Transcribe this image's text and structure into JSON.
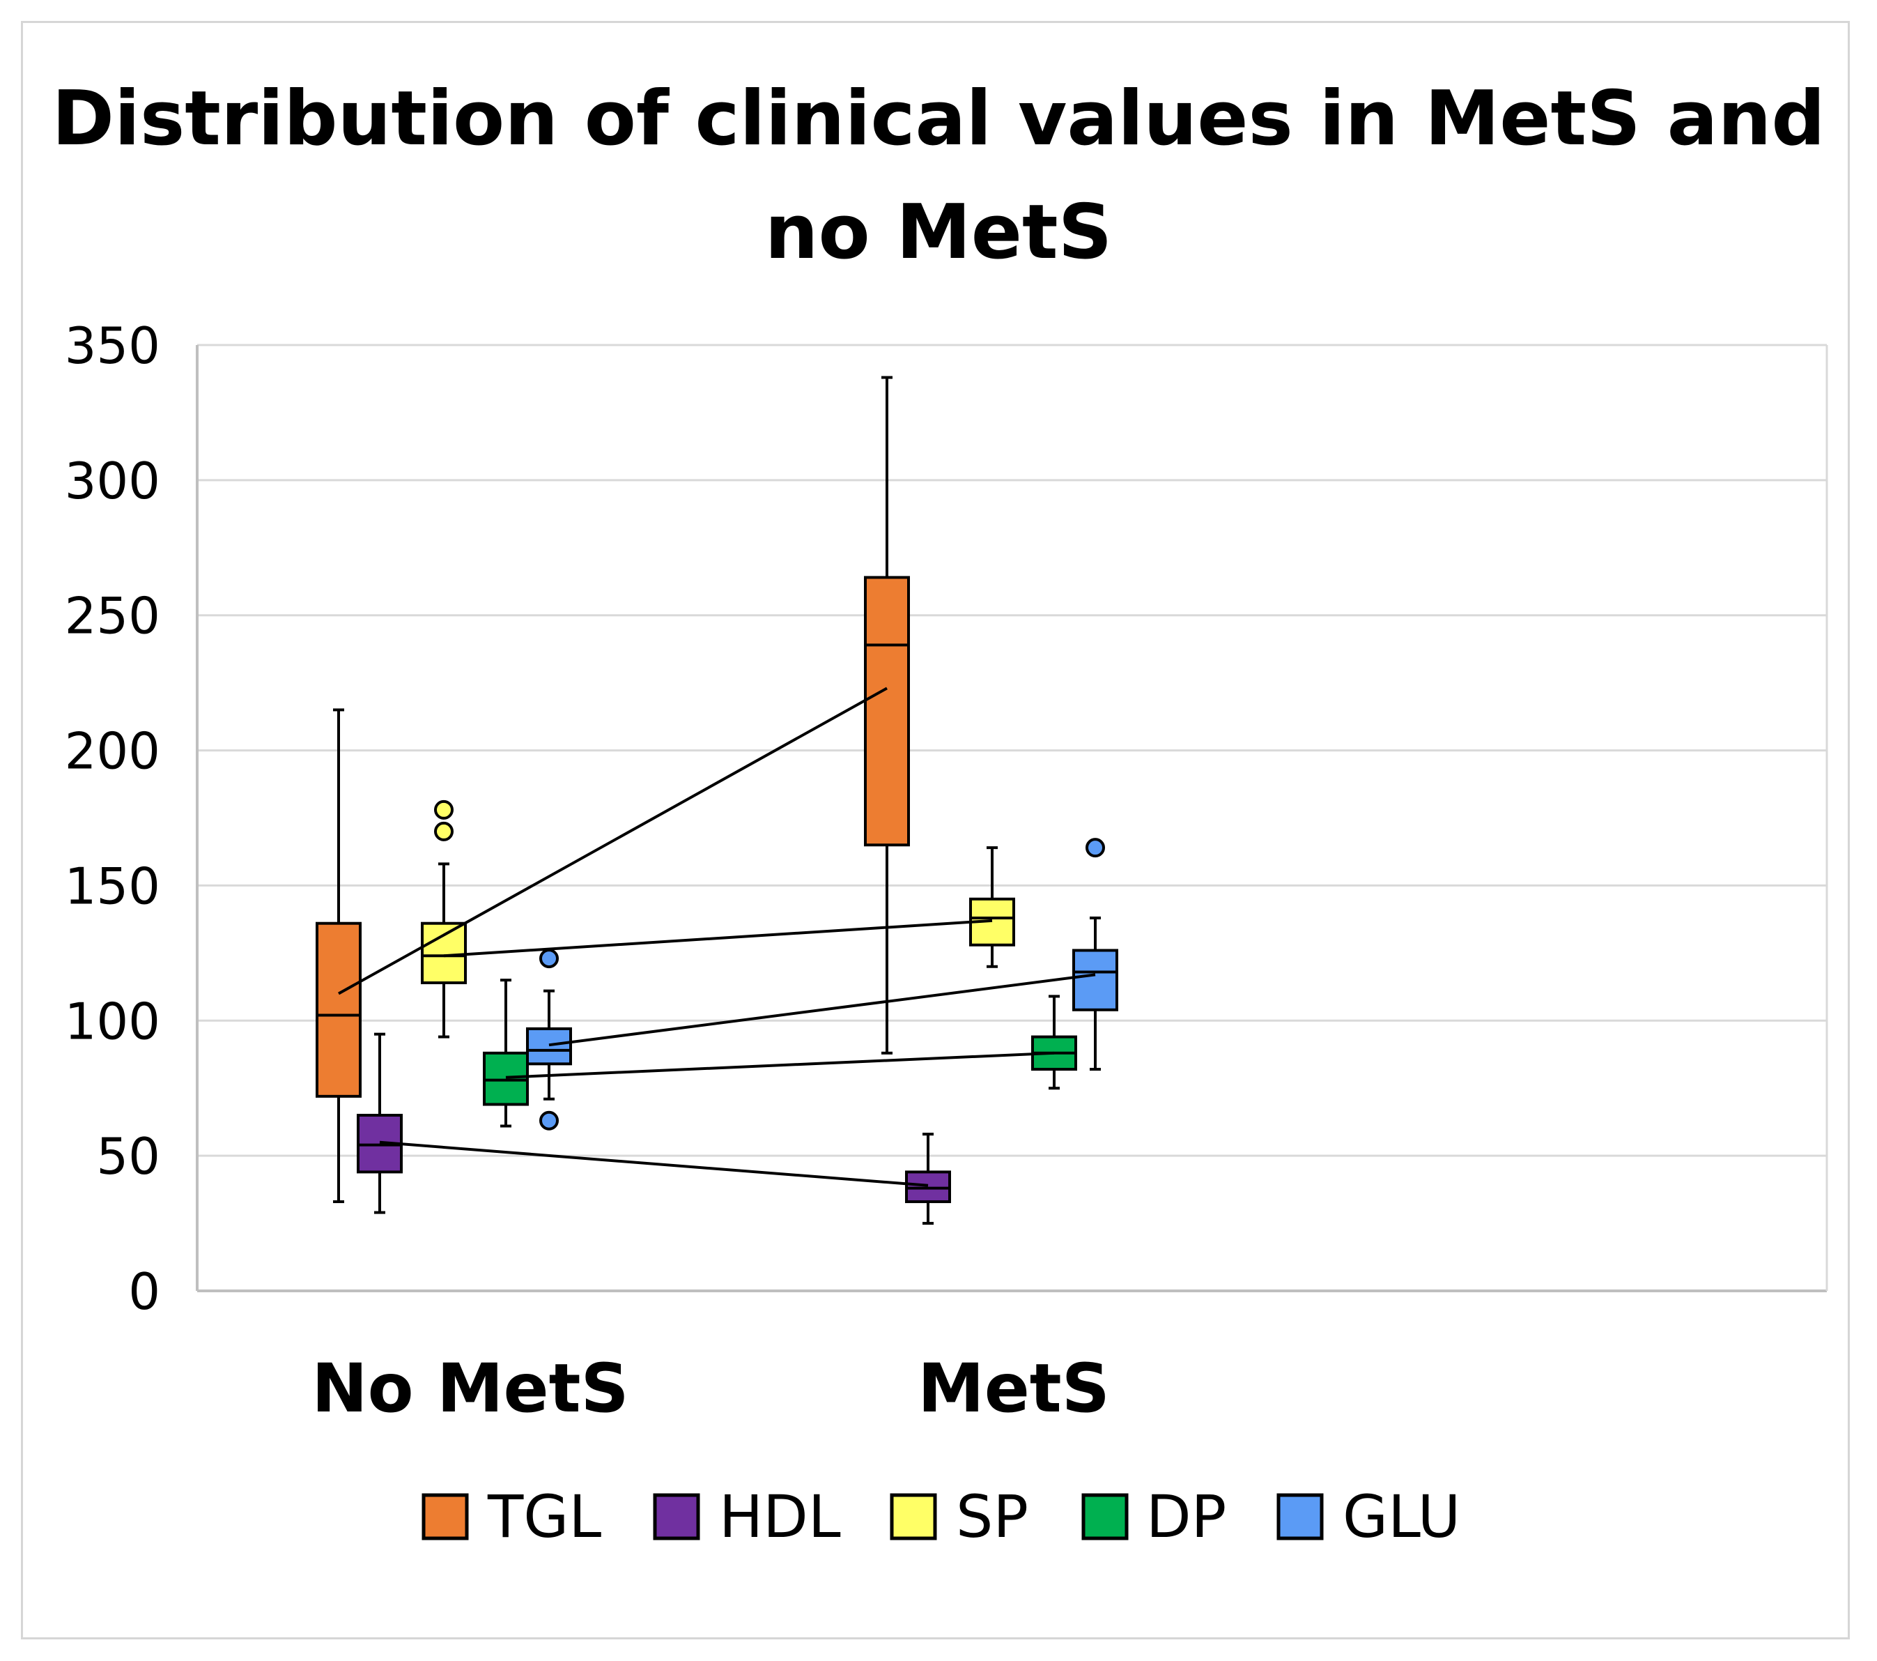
{
  "chart_data": {
    "type": "box",
    "title_lines": [
      "Distribution of clinical values in MetS and",
      "no MetS"
    ],
    "xlabel": "",
    "ylabel": "",
    "ylim": [
      0,
      350
    ],
    "yticks": [
      0,
      50,
      100,
      150,
      200,
      250,
      300,
      350
    ],
    "grid": true,
    "legend_position": "bottom",
    "categories": [
      "No MetS",
      "MetS"
    ],
    "series": [
      {
        "name": "TGL",
        "color": "#ED7D31",
        "boxes": [
          {
            "min": 33,
            "q1": 72,
            "median": 102,
            "q3": 136,
            "max": 215,
            "mean": 110,
            "outliers": []
          },
          {
            "min": 88,
            "q1": 165,
            "median": 239,
            "q3": 264,
            "max": 338,
            "mean": 223,
            "outliers": []
          }
        ]
      },
      {
        "name": "HDL",
        "color": "#7030A0",
        "boxes": [
          {
            "min": 29,
            "q1": 44,
            "median": 54,
            "q3": 65,
            "max": 95,
            "mean": 55,
            "outliers": []
          },
          {
            "min": 25,
            "q1": 33,
            "median": 38,
            "q3": 44,
            "max": 58,
            "mean": 39,
            "outliers": []
          }
        ]
      },
      {
        "name": "SP",
        "color": "#FFFF66",
        "boxes": [
          {
            "min": 94,
            "q1": 114,
            "median": 124,
            "q3": 136,
            "max": 158,
            "mean": 124,
            "outliers": [
              170,
              178
            ]
          },
          {
            "min": 120,
            "q1": 128,
            "median": 138,
            "q3": 145,
            "max": 164,
            "mean": 137,
            "outliers": []
          }
        ]
      },
      {
        "name": "DP",
        "color": "#00B050",
        "boxes": [
          {
            "min": 61,
            "q1": 69,
            "median": 78,
            "q3": 88,
            "max": 115,
            "mean": 79,
            "outliers": []
          },
          {
            "min": 75,
            "q1": 82,
            "median": 88,
            "q3": 94,
            "max": 109,
            "mean": 88,
            "outliers": []
          }
        ]
      },
      {
        "name": "GLU",
        "color": "#5B9BF5",
        "boxes": [
          {
            "min": 71,
            "q1": 84,
            "median": 89,
            "q3": 97,
            "max": 111,
            "mean": 91,
            "outliers": [
              63,
              123
            ]
          },
          {
            "min": 82,
            "q1": 104,
            "median": 118,
            "q3": 126,
            "max": 138,
            "mean": 117,
            "outliers": [
              164
            ]
          }
        ]
      }
    ]
  }
}
